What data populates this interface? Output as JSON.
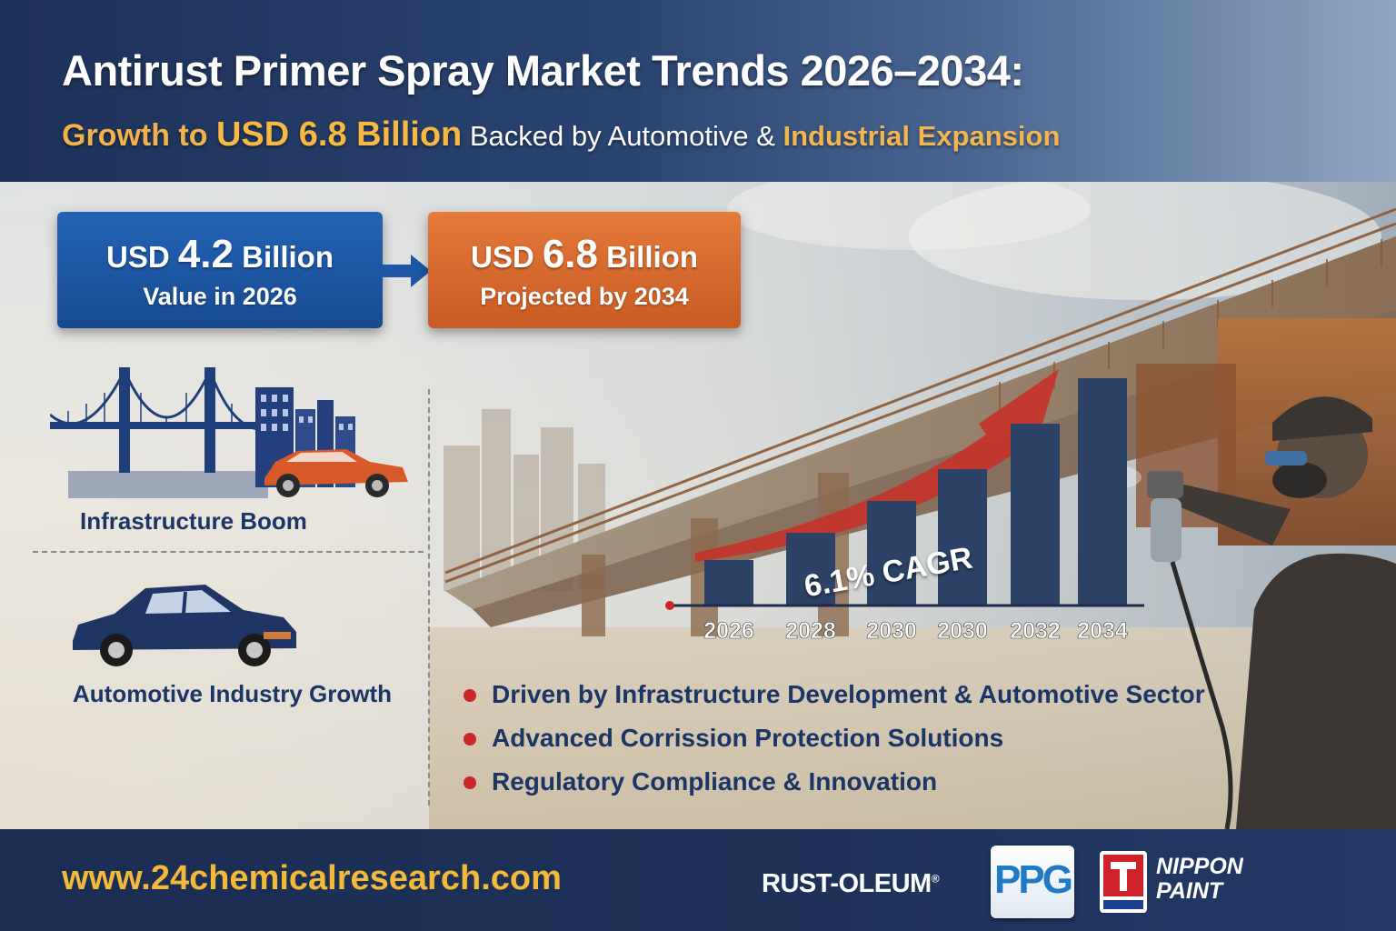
{
  "header": {
    "title": "Antirust Primer Spray Market Trends 2026–2034:",
    "subtitle": {
      "part1": "Growth to ",
      "part2": "USD 6.8 Billion",
      "part3": " Backed by Automotive & ",
      "part4": "Industrial Expansion"
    }
  },
  "cards": {
    "start": {
      "prefix": "USD ",
      "number": "4.2",
      "unit": " Billion",
      "caption": "Value in 2026"
    },
    "end": {
      "prefix": "USD ",
      "number": "6.8",
      "unit": " Billion",
      "caption": "Projected by 2034"
    }
  },
  "features": [
    {
      "label": "Infrastructure Boom",
      "icon": "bridge-city-icon"
    },
    {
      "label": "Automotive Industry Growth",
      "icon": "car-icon"
    }
  ],
  "chart_data": {
    "type": "bar",
    "categories": [
      "2026",
      "2028",
      "2030",
      "2030",
      "2032",
      "2034"
    ],
    "values": [
      1.0,
      1.6,
      2.3,
      3.0,
      4.0,
      5.0
    ],
    "annotation": "6.1% CAGR",
    "grid": false,
    "legend": "none"
  },
  "bullets": [
    "Driven by Infrastructure Development & Automotive Sector",
    "Advanced Corrission Protection Solutions",
    "Regulatory Compliance & Innovation"
  ],
  "footer": {
    "url": "www.24chemicalresearch.com",
    "logos": {
      "rustoleum": "RUST-OLEUM",
      "rustoleum_mark": "®",
      "ppg": "PPG",
      "nippon_line1": "NIPPON",
      "nippon_line2": "PAINT"
    }
  },
  "colors": {
    "navy": "#1d3158",
    "accent_gold": "#f3b93a",
    "card_blue": "#1d57a6",
    "card_orange": "#d8672d",
    "bar": "#2c4266",
    "arrow_red": "#c4332a",
    "bullet_red": "#c9262a",
    "text_navy": "#1d3566"
  }
}
